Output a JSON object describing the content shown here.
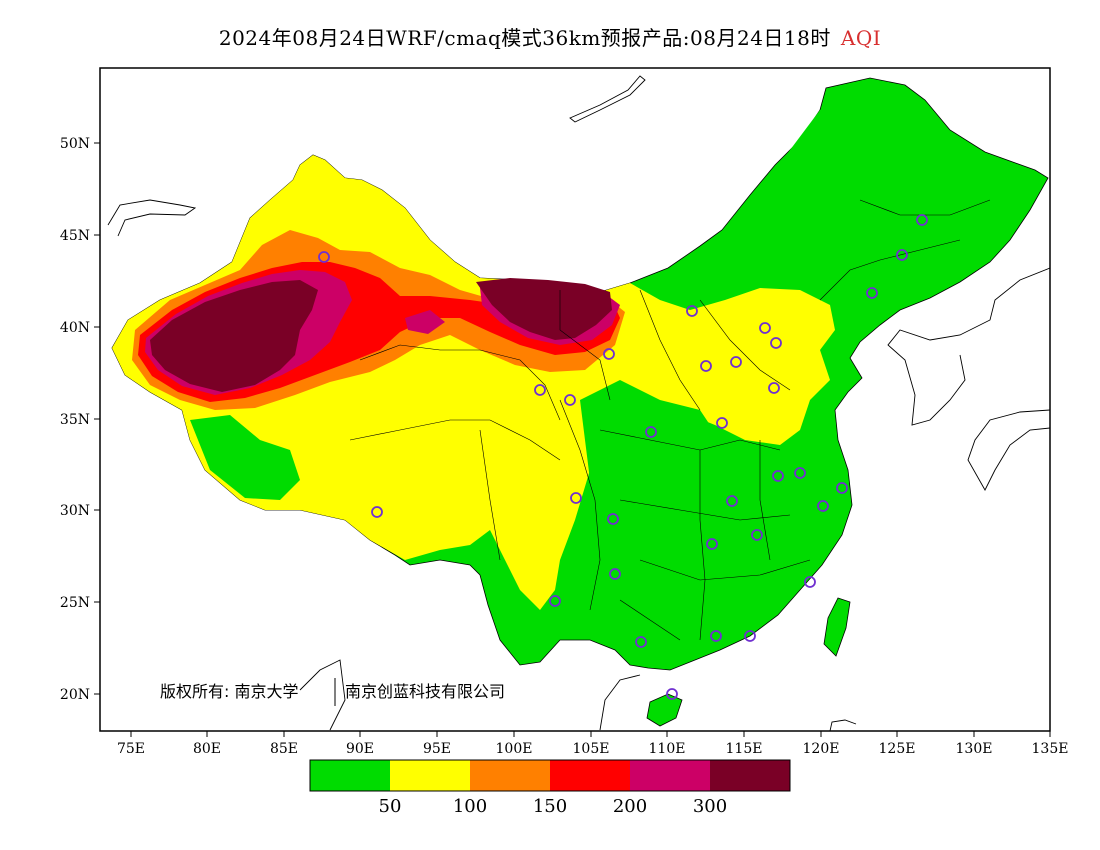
{
  "header": {
    "title": "2024年08月24日WRF/cmaq模式36km预报产品:08月24日18时",
    "variable": "AQI"
  },
  "axes": {
    "lat_labels": [
      "20N",
      "25N",
      "30N",
      "35N",
      "40N",
      "45N",
      "50N"
    ],
    "lon_labels": [
      "75E",
      "80E",
      "85E",
      "90E",
      "95E",
      "100E",
      "105E",
      "110E",
      "115E",
      "120E",
      "125E",
      "130E",
      "135E"
    ]
  },
  "legend": {
    "colors": [
      "#00dc00",
      "#ffff00",
      "#ff8000",
      "#ff0000",
      "#cc0066",
      "#7a0026"
    ],
    "labels": [
      "50",
      "100",
      "150",
      "200",
      "300"
    ]
  },
  "copyright": {
    "owner": "版权所有: 南京大学",
    "company": "南京创蓝科技有限公司"
  },
  "stations_icon": "circle-marker"
}
